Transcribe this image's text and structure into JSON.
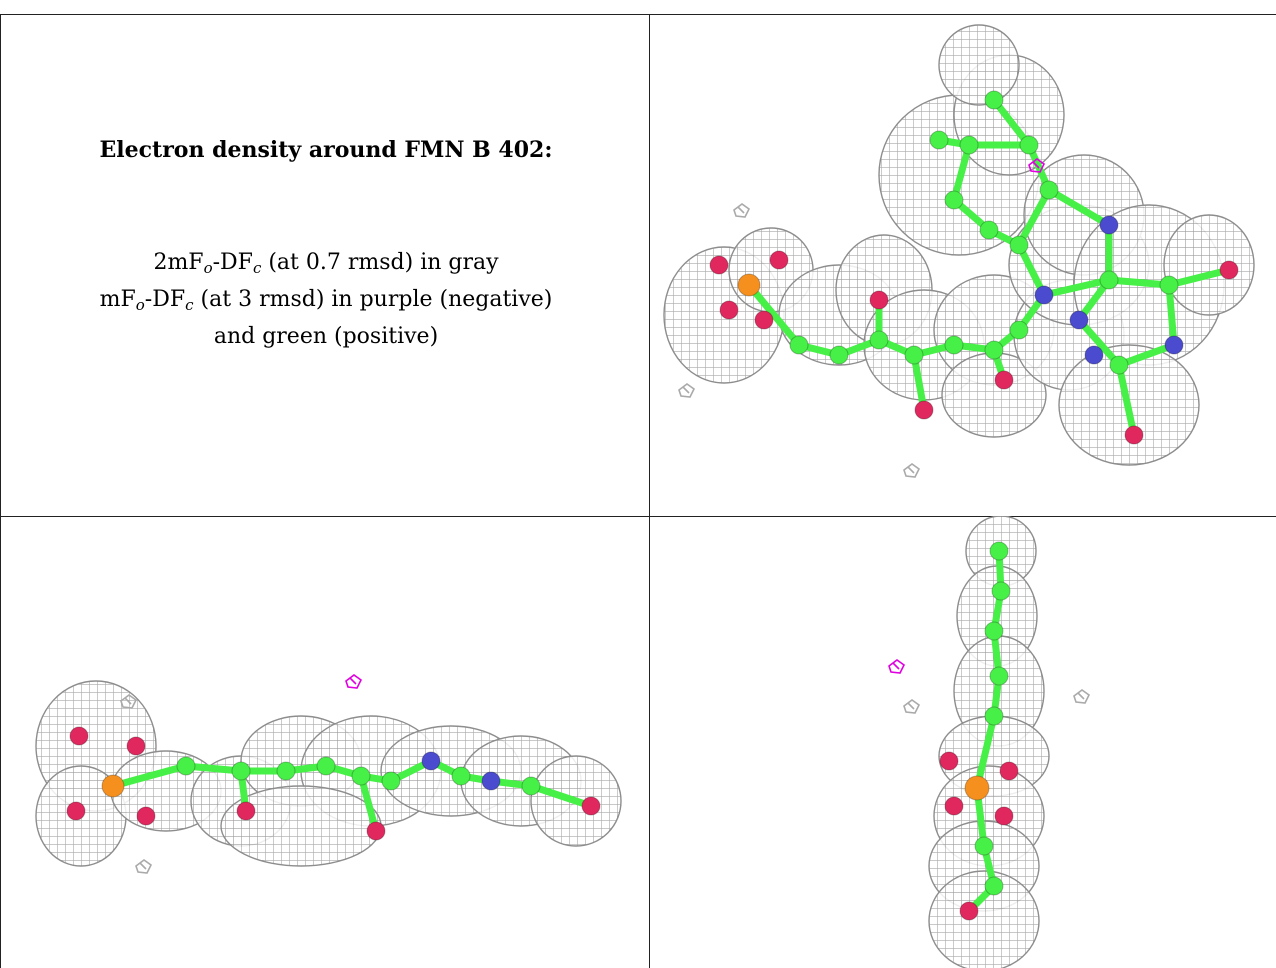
{
  "caption": {
    "title": "Electron density around FMN B 402:",
    "line1": {
      "prefix": "2mF",
      "sub1": "o",
      "mid": "-DF",
      "sub2": "c",
      "suffix": " (at 0.7 rmsd) in gray"
    },
    "line2": {
      "prefix": "mF",
      "sub1": "o",
      "mid": "-DF",
      "sub2": "c",
      "suffix": " (at 3 rmsd) in purple (negative)"
    },
    "line3": "and green (positive)"
  },
  "colors": {
    "mesh": "#9a9a9a",
    "carbon": "#46f046",
    "nitrogen": "#4b4bcf",
    "oxygen": "#e0285e",
    "phosphorus": "#f5901e",
    "negative_density": "#e000e0"
  },
  "panels": [
    {
      "name": "top-view"
    },
    {
      "name": "side-view"
    },
    {
      "name": "end-view"
    }
  ]
}
